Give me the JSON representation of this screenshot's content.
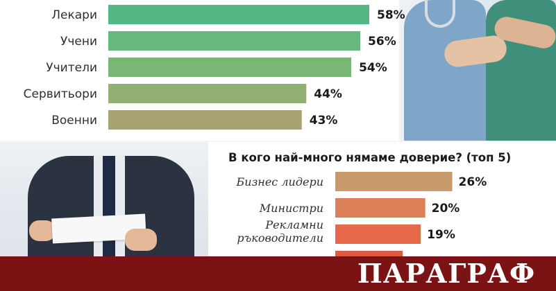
{
  "chart_data": [
    {
      "type": "bar",
      "title": "",
      "categories": [
        "Лекари",
        "Учени",
        "Учители",
        "Сервитьори",
        "Военни"
      ],
      "values": [
        58,
        56,
        54,
        44,
        43
      ],
      "value_labels": [
        "58%",
        "56%",
        "54%",
        "44%",
        "43%"
      ],
      "colors": [
        "#55b785",
        "#67b87e",
        "#79b774",
        "#93b074",
        "#a6a370"
      ],
      "xlim": [
        0,
        60
      ]
    },
    {
      "type": "bar",
      "title": "В кого най-много нямаме доверие? (топ 5)",
      "categories": [
        "Бизнес лидери",
        "Министри",
        "Рекламни ръководители",
        ""
      ],
      "values": [
        26,
        20,
        19,
        15
      ],
      "value_labels": [
        "26%",
        "20%",
        "19%",
        ""
      ],
      "colors": [
        "#c99a6b",
        "#dc8059",
        "#e6694a",
        "#e05a3f"
      ],
      "xlim": [
        0,
        60
      ]
    }
  ],
  "brand": {
    "logo": "ПАРАГРАФ",
    "banner_color": "#7b1315"
  }
}
